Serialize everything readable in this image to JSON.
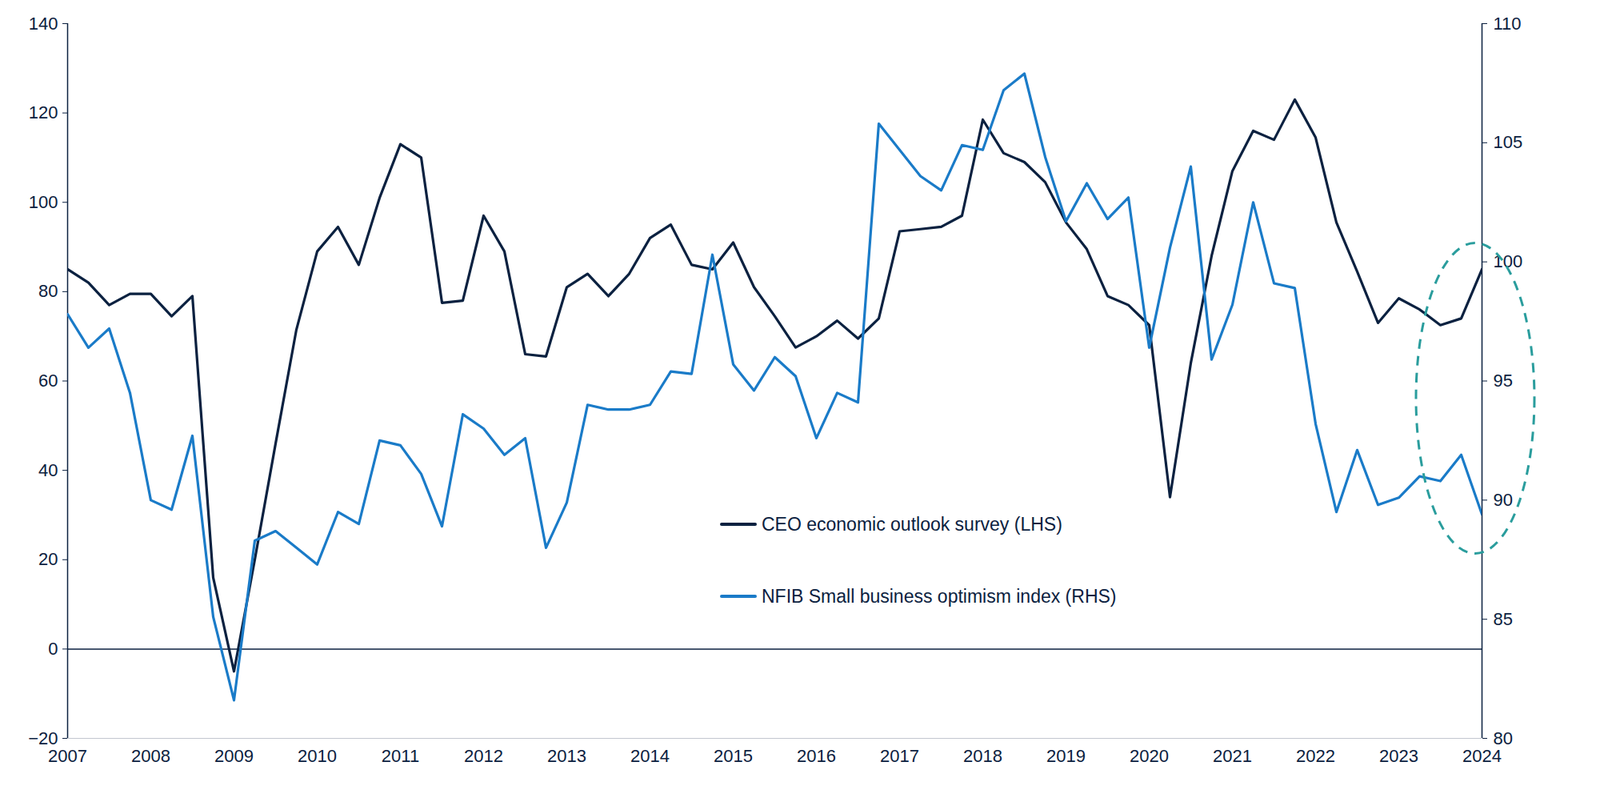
{
  "chart_data": {
    "type": "line",
    "x": [
      2007,
      2007.25,
      2007.5,
      2007.75,
      2008,
      2008.25,
      2008.5,
      2008.75,
      2009,
      2009.25,
      2009.5,
      2009.75,
      2010,
      2010.25,
      2010.5,
      2010.75,
      2011,
      2011.25,
      2011.5,
      2011.75,
      2012,
      2012.25,
      2012.5,
      2012.75,
      2013,
      2013.25,
      2013.5,
      2013.75,
      2014,
      2014.25,
      2014.5,
      2014.75,
      2015,
      2015.25,
      2015.5,
      2015.75,
      2016,
      2016.25,
      2016.5,
      2016.75,
      2017,
      2017.25,
      2017.5,
      2017.75,
      2018,
      2018.25,
      2018.5,
      2018.75,
      2019,
      2019.25,
      2019.5,
      2019.75,
      2020,
      2020.25,
      2020.5,
      2020.75,
      2021,
      2021.25,
      2021.5,
      2021.75,
      2022,
      2022.25,
      2022.5,
      2022.75,
      2023,
      2023.25,
      2023.5,
      2023.75,
      2024
    ],
    "series": [
      {
        "name": "CEO economic outlook survey (LHS)",
        "color": "#0b2140",
        "values": [
          85,
          82,
          77,
          79.5,
          79.5,
          74.5,
          79,
          16,
          -5,
          20,
          46,
          71.5,
          89,
          94.5,
          86,
          101,
          113,
          110,
          77.5,
          78,
          97,
          89,
          66,
          65.5,
          81,
          84,
          79,
          84,
          92,
          95,
          86,
          85,
          91,
          81,
          74.5,
          67.5,
          70,
          73.5,
          69.5,
          74,
          93.5,
          94,
          94.5,
          97,
          118.5,
          111,
          109,
          104.5,
          95.5,
          89.5,
          79,
          77,
          72.5,
          34,
          64,
          88,
          107,
          116,
          114,
          123,
          114.5,
          95.5,
          84.5,
          73,
          78.5,
          76,
          72.5,
          74,
          85
        ]
      },
      {
        "name": "NFIB Small business optimism index (RHS)",
        "color": "#1a7bc8",
        "axis": "y2",
        "values": [
          97.8,
          96.4,
          97.2,
          94.5,
          90.0,
          89.6,
          92.7,
          85.1,
          81.6,
          88.3,
          88.7,
          88.0,
          87.3,
          89.5,
          89.0,
          92.5,
          92.3,
          91.1,
          88.9,
          93.6,
          93.0,
          91.9,
          92.6,
          88.0,
          89.9,
          94.0,
          93.8,
          93.8,
          94.0,
          95.4,
          95.3,
          100.3,
          95.7,
          94.6,
          96.0,
          95.2,
          92.6,
          94.5,
          94.1,
          105.8,
          104.7,
          103.6,
          103.0,
          104.9,
          104.7,
          107.2,
          107.9,
          104.4,
          101.7,
          103.3,
          101.8,
          102.7,
          96.4,
          100.6,
          104.0,
          95.9,
          98.2,
          102.5,
          99.1,
          98.9,
          93.2,
          89.5,
          92.1,
          89.8,
          90.1,
          91.0,
          90.8,
          91.9,
          89.4
        ]
      }
    ],
    "xlim": [
      2007,
      2024
    ],
    "xticks": [
      2007,
      2008,
      2009,
      2010,
      2011,
      2012,
      2013,
      2014,
      2015,
      2016,
      2017,
      2018,
      2019,
      2020,
      2021,
      2022,
      2023,
      2024
    ],
    "ylim": [
      -20,
      140
    ],
    "yticks": [
      -20,
      0,
      20,
      40,
      60,
      80,
      100,
      120,
      140
    ],
    "y2lim": [
      80,
      110
    ],
    "y2ticks": [
      80,
      85,
      90,
      95,
      100,
      105,
      110
    ],
    "grid": false,
    "legend": "bottom"
  }
}
